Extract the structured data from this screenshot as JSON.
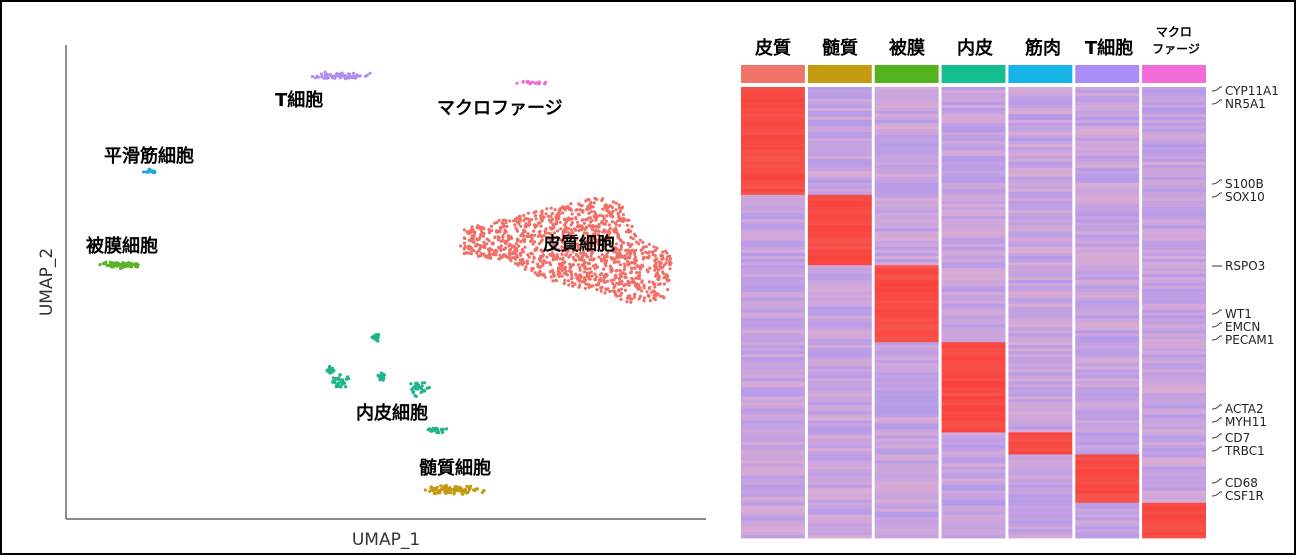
{
  "chart_data": [
    {
      "type": "scatter",
      "xlabel": "UMAP_1",
      "ylabel": "UMAP_2",
      "clusters": [
        {
          "name": "T細胞",
          "color": "#b08cf0"
        },
        {
          "name": "マクロファージ",
          "color": "#f06ad8"
        },
        {
          "name": "平滑筋細胞",
          "color": "#1fa6dc"
        },
        {
          "name": "被膜細胞",
          "color": "#5cb32a"
        },
        {
          "name": "皮質細胞",
          "color": "#f07068"
        },
        {
          "name": "内皮細胞",
          "color": "#1eb48c"
        },
        {
          "name": "髄質細胞",
          "color": "#c49a10"
        }
      ]
    },
    {
      "type": "heatmap",
      "columns": [
        {
          "label": "皮質",
          "color": "#f07468"
        },
        {
          "label": "髄質",
          "color": "#c49a10"
        },
        {
          "label": "被膜",
          "color": "#52b31e"
        },
        {
          "label": "内皮",
          "color": "#16bd8e"
        },
        {
          "label": "筋肉",
          "color": "#18b4e8"
        },
        {
          "label": "T細胞",
          "color": "#a98cf5"
        },
        {
          "label": "マクロ\nファージ",
          "color": "#f36ad9"
        }
      ],
      "row_block_fractions": [
        0.245,
        0.16,
        0.175,
        0.205,
        0.05,
        0.11,
        0.08
      ],
      "genes": [
        {
          "name": "CYP11A1",
          "pair": "a"
        },
        {
          "name": "NR5A1",
          "pair": "b"
        },
        {
          "name": "S100B",
          "pair": "a"
        },
        {
          "name": "SOX10",
          "pair": "b"
        },
        {
          "name": "RSPO3",
          "pair": "single"
        },
        {
          "name": "WT1",
          "pair": "a"
        },
        {
          "name": "EMCN",
          "pair": "b"
        },
        {
          "name": "PECAM1",
          "pair": "c"
        },
        {
          "name": "ACTA2",
          "pair": "a"
        },
        {
          "name": "MYH11",
          "pair": "b"
        },
        {
          "name": "CD7",
          "pair": "a"
        },
        {
          "name": "TRBC1",
          "pair": "b"
        },
        {
          "name": "CD68",
          "pair": "a"
        },
        {
          "name": "CSF1R",
          "pair": "b"
        }
      ],
      "colors": {
        "high": "#f8433c",
        "low": "#a995f2",
        "mid": "#f0e6f0"
      }
    }
  ]
}
